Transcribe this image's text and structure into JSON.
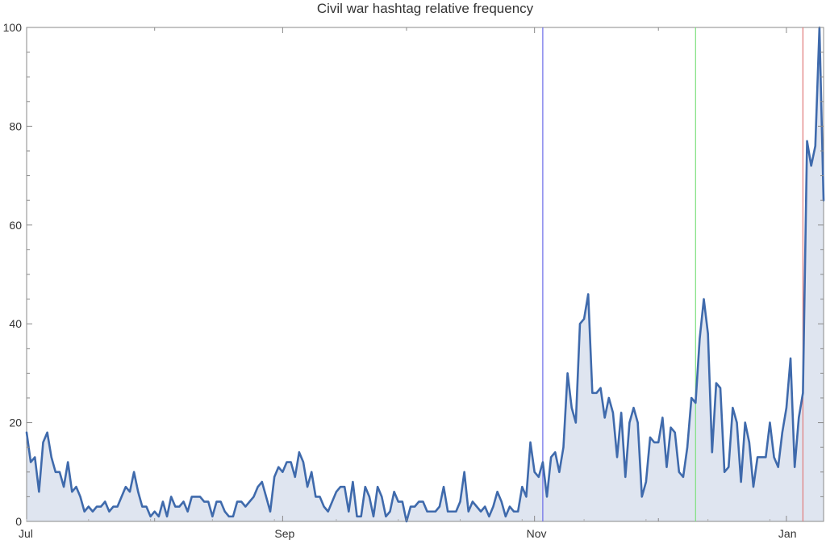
{
  "chart_data": {
    "type": "area",
    "title": "Civil war hashtag relative frequency",
    "xlabel": "",
    "ylabel": "",
    "x_start": "2013-07-01",
    "x_end": "2014-01-10",
    "ylim": [
      0,
      100
    ],
    "y_ticks": [
      0,
      20,
      40,
      60,
      80,
      100
    ],
    "x_ticks": [
      {
        "date": "2013-07-01",
        "label": "Jul"
      },
      {
        "date": "2013-09-01",
        "label": "Sep"
      },
      {
        "date": "2013-11-01",
        "label": "Nov"
      },
      {
        "date": "2014-01-01",
        "label": "Jan"
      }
    ],
    "minor_x_ticks": [
      "2013-08-01",
      "2013-10-01",
      "2013-12-01"
    ],
    "series": [
      {
        "color": "#3f6aac",
        "fill": "#dfe5f0",
        "points": [
          [
            "2013-07-01",
            18
          ],
          [
            "2013-07-02",
            12
          ],
          [
            "2013-07-03",
            13
          ],
          [
            "2013-07-04",
            6
          ],
          [
            "2013-07-05",
            16
          ],
          [
            "2013-07-06",
            18
          ],
          [
            "2013-07-07",
            13
          ],
          [
            "2013-07-08",
            10
          ],
          [
            "2013-07-09",
            10
          ],
          [
            "2013-07-10",
            7
          ],
          [
            "2013-07-11",
            12
          ],
          [
            "2013-07-12",
            6
          ],
          [
            "2013-07-13",
            7
          ],
          [
            "2013-07-14",
            5
          ],
          [
            "2013-07-15",
            2
          ],
          [
            "2013-07-16",
            3
          ],
          [
            "2013-07-17",
            2
          ],
          [
            "2013-07-18",
            3
          ],
          [
            "2013-07-19",
            3
          ],
          [
            "2013-07-20",
            4
          ],
          [
            "2013-07-21",
            2
          ],
          [
            "2013-07-22",
            3
          ],
          [
            "2013-07-23",
            3
          ],
          [
            "2013-07-24",
            5
          ],
          [
            "2013-07-25",
            7
          ],
          [
            "2013-07-26",
            6
          ],
          [
            "2013-07-27",
            10
          ],
          [
            "2013-07-28",
            6
          ],
          [
            "2013-07-29",
            3
          ],
          [
            "2013-07-30",
            3
          ],
          [
            "2013-07-31",
            1
          ],
          [
            "2013-08-01",
            2
          ],
          [
            "2013-08-02",
            1
          ],
          [
            "2013-08-03",
            4
          ],
          [
            "2013-08-04",
            1
          ],
          [
            "2013-08-05",
            5
          ],
          [
            "2013-08-06",
            3
          ],
          [
            "2013-08-07",
            3
          ],
          [
            "2013-08-08",
            4
          ],
          [
            "2013-08-09",
            2
          ],
          [
            "2013-08-10",
            5
          ],
          [
            "2013-08-11",
            5
          ],
          [
            "2013-08-12",
            5
          ],
          [
            "2013-08-13",
            4
          ],
          [
            "2013-08-14",
            4
          ],
          [
            "2013-08-15",
            1
          ],
          [
            "2013-08-16",
            4
          ],
          [
            "2013-08-17",
            4
          ],
          [
            "2013-08-18",
            2
          ],
          [
            "2013-08-19",
            1
          ],
          [
            "2013-08-20",
            1
          ],
          [
            "2013-08-21",
            4
          ],
          [
            "2013-08-22",
            4
          ],
          [
            "2013-08-23",
            3
          ],
          [
            "2013-08-24",
            4
          ],
          [
            "2013-08-25",
            5
          ],
          [
            "2013-08-26",
            7
          ],
          [
            "2013-08-27",
            8
          ],
          [
            "2013-08-28",
            5
          ],
          [
            "2013-08-29",
            2
          ],
          [
            "2013-08-30",
            9
          ],
          [
            "2013-08-31",
            11
          ],
          [
            "2013-09-01",
            10
          ],
          [
            "2013-09-02",
            12
          ],
          [
            "2013-09-03",
            12
          ],
          [
            "2013-09-04",
            9
          ],
          [
            "2013-09-05",
            14
          ],
          [
            "2013-09-06",
            12
          ],
          [
            "2013-09-07",
            7
          ],
          [
            "2013-09-08",
            10
          ],
          [
            "2013-09-09",
            5
          ],
          [
            "2013-09-10",
            5
          ],
          [
            "2013-09-11",
            3
          ],
          [
            "2013-09-12",
            2
          ],
          [
            "2013-09-13",
            4
          ],
          [
            "2013-09-14",
            6
          ],
          [
            "2013-09-15",
            7
          ],
          [
            "2013-09-16",
            7
          ],
          [
            "2013-09-17",
            2
          ],
          [
            "2013-09-18",
            8
          ],
          [
            "2013-09-19",
            1
          ],
          [
            "2013-09-20",
            1
          ],
          [
            "2013-09-21",
            7
          ],
          [
            "2013-09-22",
            5
          ],
          [
            "2013-09-23",
            1
          ],
          [
            "2013-09-24",
            7
          ],
          [
            "2013-09-25",
            5
          ],
          [
            "2013-09-26",
            1
          ],
          [
            "2013-09-27",
            2
          ],
          [
            "2013-09-28",
            6
          ],
          [
            "2013-09-29",
            4
          ],
          [
            "2013-09-30",
            4
          ],
          [
            "2013-10-01",
            0
          ],
          [
            "2013-10-02",
            3
          ],
          [
            "2013-10-03",
            3
          ],
          [
            "2013-10-04",
            4
          ],
          [
            "2013-10-05",
            4
          ],
          [
            "2013-10-06",
            2
          ],
          [
            "2013-10-07",
            2
          ],
          [
            "2013-10-08",
            2
          ],
          [
            "2013-10-09",
            3
          ],
          [
            "2013-10-10",
            7
          ],
          [
            "2013-10-11",
            2
          ],
          [
            "2013-10-12",
            2
          ],
          [
            "2013-10-13",
            2
          ],
          [
            "2013-10-14",
            4
          ],
          [
            "2013-10-15",
            10
          ],
          [
            "2013-10-16",
            2
          ],
          [
            "2013-10-17",
            4
          ],
          [
            "2013-10-18",
            3
          ],
          [
            "2013-10-19",
            2
          ],
          [
            "2013-10-20",
            3
          ],
          [
            "2013-10-21",
            1
          ],
          [
            "2013-10-22",
            3
          ],
          [
            "2013-10-23",
            6
          ],
          [
            "2013-10-24",
            4
          ],
          [
            "2013-10-25",
            1
          ],
          [
            "2013-10-26",
            3
          ],
          [
            "2013-10-27",
            2
          ],
          [
            "2013-10-28",
            2
          ],
          [
            "2013-10-29",
            7
          ],
          [
            "2013-10-30",
            5
          ],
          [
            "2013-10-31",
            16
          ],
          [
            "2013-11-01",
            10
          ],
          [
            "2013-11-02",
            9
          ],
          [
            "2013-11-03",
            12
          ],
          [
            "2013-11-04",
            5
          ],
          [
            "2013-11-05",
            13
          ],
          [
            "2013-11-06",
            14
          ],
          [
            "2013-11-07",
            10
          ],
          [
            "2013-11-08",
            15
          ],
          [
            "2013-11-09",
            30
          ],
          [
            "2013-11-10",
            23
          ],
          [
            "2013-11-11",
            20
          ],
          [
            "2013-11-12",
            40
          ],
          [
            "2013-11-13",
            41
          ],
          [
            "2013-11-14",
            46
          ],
          [
            "2013-11-15",
            26
          ],
          [
            "2013-11-16",
            26
          ],
          [
            "2013-11-17",
            27
          ],
          [
            "2013-11-18",
            21
          ],
          [
            "2013-11-19",
            25
          ],
          [
            "2013-11-20",
            22
          ],
          [
            "2013-11-21",
            13
          ],
          [
            "2013-11-22",
            22
          ],
          [
            "2013-11-23",
            9
          ],
          [
            "2013-11-24",
            20
          ],
          [
            "2013-11-25",
            23
          ],
          [
            "2013-11-26",
            20
          ],
          [
            "2013-11-27",
            5
          ],
          [
            "2013-11-28",
            8
          ],
          [
            "2013-11-29",
            17
          ],
          [
            "2013-11-30",
            16
          ],
          [
            "2013-12-01",
            16
          ],
          [
            "2013-12-02",
            21
          ],
          [
            "2013-12-03",
            11
          ],
          [
            "2013-12-04",
            19
          ],
          [
            "2013-12-05",
            18
          ],
          [
            "2013-12-06",
            10
          ],
          [
            "2013-12-07",
            9
          ],
          [
            "2013-12-08",
            15
          ],
          [
            "2013-12-09",
            25
          ],
          [
            "2013-12-10",
            24
          ],
          [
            "2013-12-11",
            37
          ],
          [
            "2013-12-12",
            45
          ],
          [
            "2013-12-13",
            38
          ],
          [
            "2013-12-14",
            14
          ],
          [
            "2013-12-15",
            28
          ],
          [
            "2013-12-16",
            27
          ],
          [
            "2013-12-17",
            10
          ],
          [
            "2013-12-18",
            11
          ],
          [
            "2013-12-19",
            23
          ],
          [
            "2013-12-20",
            20
          ],
          [
            "2013-12-21",
            8
          ],
          [
            "2013-12-22",
            20
          ],
          [
            "2013-12-23",
            16
          ],
          [
            "2013-12-24",
            7
          ],
          [
            "2013-12-25",
            13
          ],
          [
            "2013-12-26",
            13
          ],
          [
            "2013-12-27",
            13
          ],
          [
            "2013-12-28",
            20
          ],
          [
            "2013-12-29",
            13
          ],
          [
            "2013-12-30",
            11
          ],
          [
            "2013-12-31",
            18
          ],
          [
            "2014-01-01",
            23
          ],
          [
            "2014-01-02",
            33
          ],
          [
            "2014-01-03",
            11
          ],
          [
            "2014-01-04",
            21
          ],
          [
            "2014-01-05",
            26
          ],
          [
            "2014-01-06",
            77
          ],
          [
            "2014-01-07",
            72
          ],
          [
            "2014-01-08",
            76
          ],
          [
            "2014-01-09",
            100
          ],
          [
            "2014-01-10",
            65
          ]
        ]
      }
    ],
    "annotations": [
      {
        "type": "vertical-line",
        "date": "2013-11-03",
        "color": "#6a6ae8"
      },
      {
        "type": "vertical-line",
        "date": "2013-12-10",
        "color": "#7fe07f"
      },
      {
        "type": "vertical-line",
        "date": "2014-01-05",
        "color": "#e07a7a"
      }
    ],
    "grid": false,
    "legend": "none"
  }
}
